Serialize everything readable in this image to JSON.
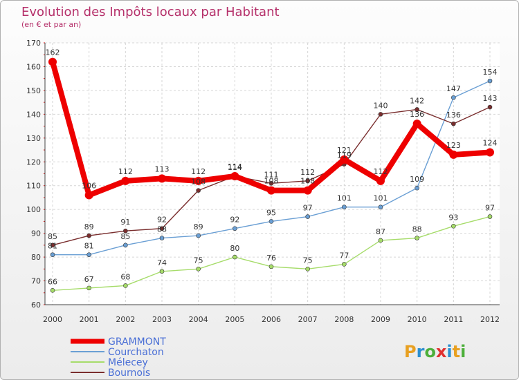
{
  "chart_data": {
    "type": "line",
    "title": "Evolution des Impôts locaux par Habitant",
    "subtitle": "(en € et par an)",
    "x": [
      "2000",
      "2001",
      "2002",
      "2003",
      "2004",
      "2005",
      "2006",
      "2007",
      "2008",
      "2009",
      "2010",
      "2011",
      "2012"
    ],
    "ylim": [
      60,
      170
    ],
    "yticks": [
      60,
      70,
      80,
      90,
      100,
      110,
      120,
      130,
      140,
      150,
      160,
      170
    ],
    "series": [
      {
        "name": "Courchaton",
        "color": "#6a9fd4",
        "values": [
          81,
          81,
          85,
          88,
          89,
          92,
          95,
          97,
          101,
          101,
          109,
          147,
          154
        ]
      },
      {
        "name": "Mélecey",
        "color": "#a6dc6a",
        "values": [
          66,
          67,
          68,
          74,
          75,
          80,
          76,
          75,
          77,
          87,
          88,
          93,
          97
        ]
      },
      {
        "name": "Bournois",
        "color": "#7a2e2e",
        "values": [
          85,
          89,
          91,
          92,
          108,
          114,
          111,
          112,
          119,
          140,
          142,
          136,
          143
        ]
      },
      {
        "name": "GRAMMONT",
        "color": "#ee0000",
        "values": [
          162,
          106,
          112,
          113,
          112,
          114,
          108,
          108,
          121,
          112,
          136,
          123,
          124
        ]
      }
    ],
    "legend": [
      "GRAMMONT",
      "Courchaton",
      "Mélecey",
      "Bournois"
    ],
    "logo": "Proxiti"
  }
}
